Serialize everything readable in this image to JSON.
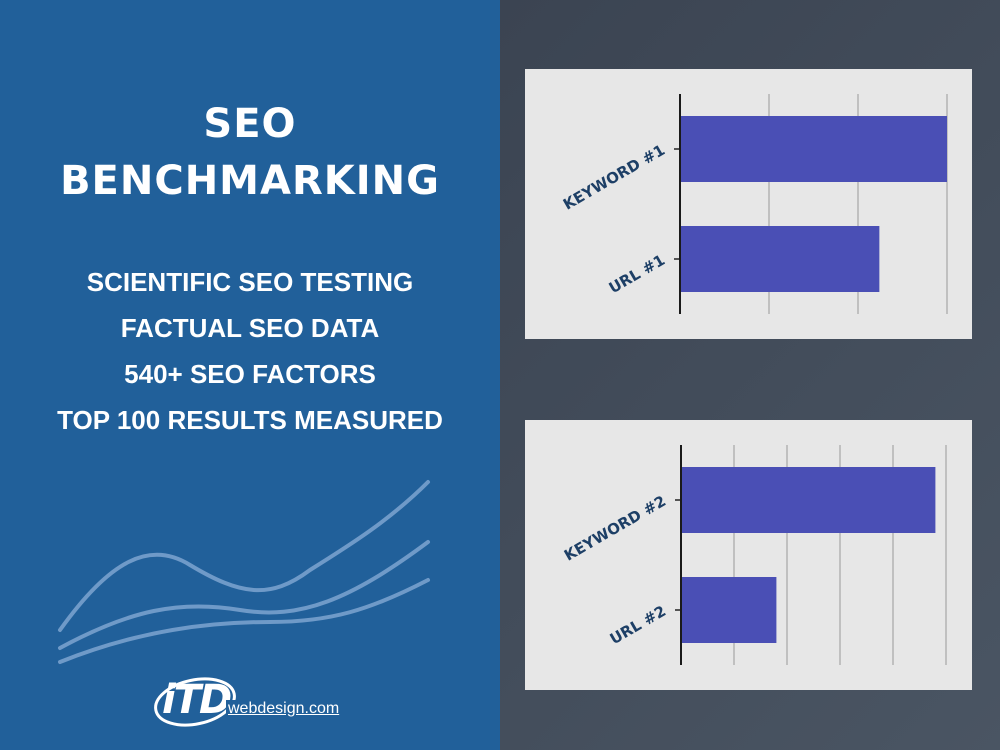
{
  "title": {
    "line1": "SEO",
    "line2": "BENCHMARKING"
  },
  "features": [
    "SCIENTIFIC SEO TESTING",
    "FACTUAL SEO DATA",
    "540+ SEO FACTORS",
    "TOP 100 RESULTS MEASURED"
  ],
  "logo": {
    "mark": "iTD",
    "text": "webdesign.com"
  },
  "colors": {
    "left_bg": "#21609a",
    "right_bg": "#414b58",
    "chart_bg": "#e7e7e7",
    "bar": "#4a4fb5",
    "label": "#1d3f66"
  },
  "chart_data": [
    {
      "type": "bar",
      "orientation": "horizontal",
      "categories": [
        "KEYWORD #1",
        "URL #1"
      ],
      "values": [
        3.0,
        2.24
      ],
      "xlim": [
        0,
        3
      ],
      "grid": true
    },
    {
      "type": "bar",
      "orientation": "horizontal",
      "categories": [
        "KEYWORD #2",
        "URL #2"
      ],
      "values": [
        4.8,
        1.8
      ],
      "xlim": [
        0,
        5
      ],
      "grid": true
    }
  ]
}
